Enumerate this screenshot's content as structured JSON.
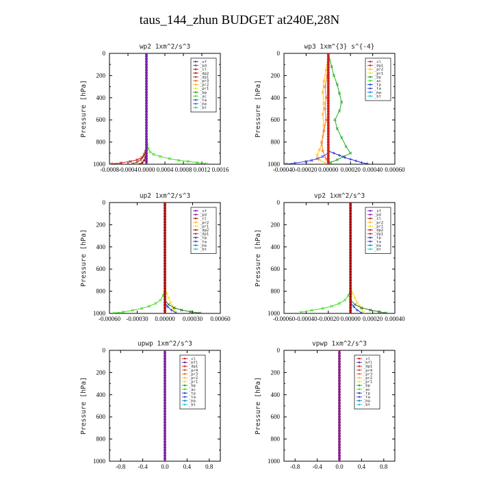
{
  "page_title": "taus_144_zhun  BUDGET at240E,28N",
  "chart_data": [
    {
      "type": "line",
      "title": "wp2  1xm^2/s^3",
      "ylabel": "Pressure [hPa]",
      "ylim": [
        1000,
        0
      ],
      "yticks": [
        "0",
        "200",
        "400",
        "600",
        "800",
        "1000"
      ],
      "xlim": [
        -0.0008,
        0.0016
      ],
      "xticks": [
        -0.0008,
        -0.0004,
        0.0,
        0.0004,
        0.0008,
        0.0012,
        0.0016
      ],
      "xtick_labels": [
        "-0.0008",
        "-0.0004",
        "0.0000",
        "0.0004",
        "0.0008",
        "0.0012",
        "0.0016"
      ],
      "legend": [
        "_sf",
        "_pd",
        "_cl",
        "_dp2",
        "_dp1",
        "_pr3",
        "_pr2",
        "_pr1",
        "_bp",
        "_ac",
        "_ta",
        "_ma",
        "_bt"
      ],
      "series": [
        {
          "name": "_pr1",
          "color": "#44dd22",
          "marker": "x",
          "x": [
            0,
            0,
            1e-05,
            2e-05,
            4e-05,
            8e-05,
            0.00015,
            0.0003,
            0.0005,
            0.0007,
            0.0009,
            0.0011,
            0.0013
          ],
          "y": [
            0,
            700,
            780,
            820,
            860,
            890,
            910,
            930,
            950,
            965,
            975,
            985,
            995
          ]
        },
        {
          "name": "_dp1",
          "color": "#cc2222",
          "marker": "x",
          "x": [
            0,
            0,
            -2e-05,
            -5e-05,
            -0.0001,
            -0.0002,
            -0.00035,
            -0.00055,
            -0.00075
          ],
          "y": [
            0,
            820,
            880,
            910,
            940,
            960,
            975,
            988,
            997
          ]
        },
        {
          "name": "_dp2",
          "color": "#884422",
          "marker": "x",
          "x": [
            0,
            0,
            -2e-05,
            -6e-05,
            -0.00012,
            -0.0002,
            -0.0003
          ],
          "y": [
            0,
            850,
            900,
            930,
            960,
            980,
            995
          ]
        },
        {
          "name": "_cl",
          "color": "#aa1111",
          "marker": "dot",
          "x": [
            0,
            0,
            -2e-05,
            -5e-05,
            -9e-05,
            -0.00014
          ],
          "y": [
            0,
            900,
            940,
            965,
            985,
            998
          ]
        },
        {
          "name": "_sf",
          "color": "#7722aa",
          "marker": "dot",
          "x": [
            0,
            0
          ],
          "y": [
            0,
            1000
          ]
        }
      ]
    },
    {
      "type": "line",
      "title": "wp3  1xm^{3} s^{-4}",
      "ylabel": "Pressure [hPa]",
      "ylim": [
        1000,
        0
      ],
      "yticks": [
        "0",
        "200",
        "400",
        "600",
        "800",
        "1000"
      ],
      "xlim": [
        -0.0004,
        0.0006
      ],
      "xticks": [
        -0.0004,
        -0.0002,
        0.0,
        0.0002,
        0.0004,
        0.0006
      ],
      "xtick_labels": [
        "-0.00040",
        "-0.00020",
        "0.00000",
        "0.00020",
        "0.00040",
        "0.00060"
      ],
      "legend": [
        "_cl",
        "_dp1",
        "_pr2",
        "_pr1",
        "_bp",
        "_ac",
        "_tp",
        "_ta",
        "_ma",
        "_bt"
      ],
      "series": [
        {
          "name": "_bp",
          "color": "#22aa22",
          "marker": "x",
          "x": [
            0,
            3e-05,
            5e-05,
            8e-05,
            0.0001,
            0.00012,
            0.0001,
            6e-05,
            8e-05,
            0.00012,
            0.00016,
            0.0002,
            0.00014,
            8e-05,
            2e-05,
            0
          ],
          "y": [
            0,
            120,
            200,
            280,
            360,
            440,
            520,
            600,
            680,
            760,
            840,
            900,
            930,
            960,
            985,
            1000
          ]
        },
        {
          "name": "_pr2",
          "color": "#ffbb22",
          "marker": "x",
          "x": [
            0,
            -2e-05,
            -4e-05,
            -5e-05,
            -4e-05,
            -5e-05,
            -4e-05,
            -5e-05,
            -6e-05,
            -8e-05,
            -0.0001,
            -8e-05,
            -3e-05,
            0
          ],
          "y": [
            0,
            150,
            250,
            350,
            450,
            550,
            650,
            750,
            820,
            870,
            920,
            960,
            990,
            1000
          ]
        },
        {
          "name": "_pr1",
          "color": "#ff7722",
          "marker": "x",
          "x": [
            0,
            -1e-05,
            -3e-05,
            -2e-05,
            -3e-05,
            -2e-05,
            -4e-05,
            -6e-05,
            -5e-05,
            -2e-05,
            0
          ],
          "y": [
            0,
            200,
            300,
            400,
            500,
            600,
            700,
            800,
            880,
            950,
            1000
          ]
        },
        {
          "name": "_tp",
          "color": "#2222cc",
          "marker": "plus",
          "x": [
            0,
            0,
            5e-05,
            0.0001,
            0.00015,
            0.0002,
            0.00025,
            0.0003,
            0.00035
          ],
          "y": [
            0,
            880,
            900,
            920,
            940,
            955,
            970,
            985,
            995
          ]
        },
        {
          "name": "_ta",
          "color": "#4444dd",
          "marker": "x",
          "x": [
            0,
            0,
            -5e-05,
            -0.0001,
            -0.00015,
            -0.0002,
            -0.0003,
            -0.00038
          ],
          "y": [
            0,
            900,
            930,
            950,
            965,
            975,
            990,
            998
          ]
        },
        {
          "name": "_dp1",
          "color": "#cc2222",
          "marker": "dot",
          "x": [
            0,
            0
          ],
          "y": [
            0,
            1000
          ]
        }
      ]
    },
    {
      "type": "line",
      "title": "up2  1xm^2/s^3",
      "ylabel": "Pressure [hPa]",
      "ylim": [
        1000,
        0
      ],
      "yticks": [
        "0",
        "200",
        "400",
        "600",
        "800",
        "1000"
      ],
      "xlim": [
        -0.0006,
        0.0006
      ],
      "xticks": [
        -0.0006,
        -0.0003,
        0.0,
        0.0003,
        0.0006
      ],
      "xtick_labels": [
        "-0.00060",
        "-0.00030",
        "0.00000",
        "0.00030",
        "0.00060"
      ],
      "legend": [
        "_sf",
        "_pd",
        "_cl",
        "_pr2",
        "_pr1",
        "_dp2",
        "_dp1",
        "_tp",
        "_ta",
        "_ma",
        "_bt"
      ],
      "series": [
        {
          "name": "_dp1",
          "color": "#44dd22",
          "marker": "x",
          "x": [
            0,
            0,
            -2e-05,
            -5e-05,
            -0.0001,
            -0.00017,
            -0.00025,
            -0.00035,
            -0.00045,
            -0.00055
          ],
          "y": [
            0,
            780,
            840,
            880,
            910,
            935,
            955,
            972,
            987,
            997
          ]
        },
        {
          "name": "_pr1",
          "color": "#ffdd22",
          "marker": "x",
          "x": [
            0,
            0,
            2e-05,
            4e-05,
            6e-05,
            8e-05,
            9e-05,
            0.0001,
            0.00012
          ],
          "y": [
            0,
            760,
            820,
            860,
            900,
            930,
            950,
            970,
            990
          ]
        },
        {
          "name": "_dp2",
          "color": "#227722",
          "marker": "x",
          "x": [
            0,
            0,
            4e-05,
            0.0001,
            0.00018,
            0.00028,
            0.00038
          ],
          "y": [
            0,
            880,
            920,
            950,
            970,
            985,
            997
          ]
        },
        {
          "name": "_tp",
          "color": "#2244cc",
          "marker": "plus",
          "x": [
            0,
            0,
            3e-05,
            7e-05,
            0.00012
          ],
          "y": [
            0,
            900,
            940,
            970,
            995
          ]
        },
        {
          "name": "_sf",
          "color": "#aa1111",
          "marker": "dot",
          "x": [
            0,
            0
          ],
          "y": [
            0,
            1000
          ]
        }
      ]
    },
    {
      "type": "line",
      "title": "vp2  1xm^2/s^3",
      "ylabel": "Pressure [hPa]",
      "ylim": [
        1000,
        0
      ],
      "yticks": [
        "0",
        "200",
        "400",
        "600",
        "800",
        "1000"
      ],
      "xlim": [
        -0.0006,
        0.0004
      ],
      "xticks": [
        -0.0006,
        -0.0004,
        -0.0002,
        0.0,
        0.0002,
        0.0004
      ],
      "xtick_labels": [
        "-0.00060",
        "-0.00040",
        "-0.00020",
        "0.00000",
        "0.00020",
        "0.00040"
      ],
      "legend": [
        "_sf",
        "_pd",
        "_cl",
        "_pr2",
        "_pr1",
        "_dp2",
        "_dp1",
        "_tp",
        "_ta",
        "_ma",
        "_bt"
      ],
      "series": [
        {
          "name": "_dp1",
          "color": "#44dd22",
          "marker": "x",
          "x": [
            0,
            0,
            -2e-05,
            -5e-05,
            -0.0001,
            -0.00017,
            -0.00025,
            -0.00035,
            -0.00045
          ],
          "y": [
            0,
            780,
            840,
            880,
            910,
            935,
            955,
            972,
            990
          ]
        },
        {
          "name": "_pr1",
          "color": "#ffdd22",
          "marker": "x",
          "x": [
            0,
            0,
            2e-05,
            4e-05,
            6e-05,
            8e-05,
            0.0001,
            0.00012
          ],
          "y": [
            0,
            760,
            820,
            860,
            900,
            930,
            960,
            990
          ]
        },
        {
          "name": "_dp2",
          "color": "#227722",
          "marker": "x",
          "x": [
            0,
            0,
            4e-05,
            0.0001,
            0.00018,
            0.00026,
            0.00032
          ],
          "y": [
            0,
            880,
            920,
            950,
            970,
            985,
            997
          ]
        },
        {
          "name": "_tp",
          "color": "#2244cc",
          "marker": "plus",
          "x": [
            0,
            0,
            3e-05,
            6e-05,
            0.0001
          ],
          "y": [
            0,
            900,
            940,
            970,
            995
          ]
        },
        {
          "name": "_sf",
          "color": "#aa1111",
          "marker": "dot",
          "x": [
            0,
            0
          ],
          "y": [
            0,
            1000
          ]
        }
      ]
    },
    {
      "type": "line",
      "title": "upwp  1xm^2/s^3",
      "ylabel": "Pressure [hPa]",
      "ylim": [
        1000,
        0
      ],
      "yticks": [
        "0",
        "200",
        "400",
        "600",
        "800",
        "1000"
      ],
      "xlim": [
        -1.0,
        1.0
      ],
      "xticks": [
        -0.8,
        -0.4,
        0.0,
        0.4,
        0.8
      ],
      "xtick_labels": [
        "-0.8",
        "-0.4",
        "0.0",
        "0.4",
        "0.8"
      ],
      "legend": [
        "_cl",
        "_mfl",
        "_dp1",
        "_pr4",
        "_pr3",
        "_pr2",
        "_pr1",
        "_bp",
        "_ac",
        "_tp",
        "_ta",
        "_ma",
        "_bt"
      ],
      "series": [
        {
          "name": "_cl",
          "color": "#cc2222",
          "marker": "dot",
          "x": [
            0,
            0
          ],
          "y": [
            0,
            1000
          ]
        },
        {
          "name": "_mfl",
          "color": "#7722aa",
          "marker": "none",
          "x": [
            0,
            0
          ],
          "y": [
            0,
            1000
          ]
        }
      ]
    },
    {
      "type": "line",
      "title": "vpwp  1xm^2/s^3",
      "ylabel": "Pressure [hPa]",
      "ylim": [
        1000,
        0
      ],
      "yticks": [
        "0",
        "200",
        "400",
        "600",
        "800",
        "1000"
      ],
      "xlim": [
        -1.0,
        1.0
      ],
      "xticks": [
        -0.8,
        -0.4,
        0.0,
        0.4,
        0.8
      ],
      "xtick_labels": [
        "-0.8",
        "-0.4",
        "0.0",
        "0.4",
        "0.8"
      ],
      "legend": [
        "_cl",
        "_mfl",
        "_dp1",
        "_pr4",
        "_pr3",
        "_pr2",
        "_pr1",
        "_bp",
        "_ac",
        "_tp",
        "_ta",
        "_ma",
        "_bt"
      ],
      "series": [
        {
          "name": "_cl",
          "color": "#cc2222",
          "marker": "dot",
          "x": [
            0,
            0
          ],
          "y": [
            0,
            1000
          ]
        },
        {
          "name": "_mfl",
          "color": "#7722aa",
          "marker": "none",
          "x": [
            0,
            0
          ],
          "y": [
            0,
            1000
          ]
        }
      ]
    }
  ],
  "legend_colors": {
    "_sf": "#7722aa",
    "_pd": "#8833bb",
    "_cl": "#cc2222",
    "_mfl": "#7722aa",
    "_dp2": "#aa2222",
    "_dp1": "#cc3333",
    "_pr4": "#dd4444",
    "_pr3": "#ee6622",
    "_pr2": "#ffbb22",
    "_pr1": "#ffdd22",
    "_bp": "#22aa22",
    "_ac": "#44dd22",
    "_tp": "#2244cc",
    "_ta": "#4444dd",
    "_ma": "#2288cc",
    "_bt": "#22cccc"
  }
}
